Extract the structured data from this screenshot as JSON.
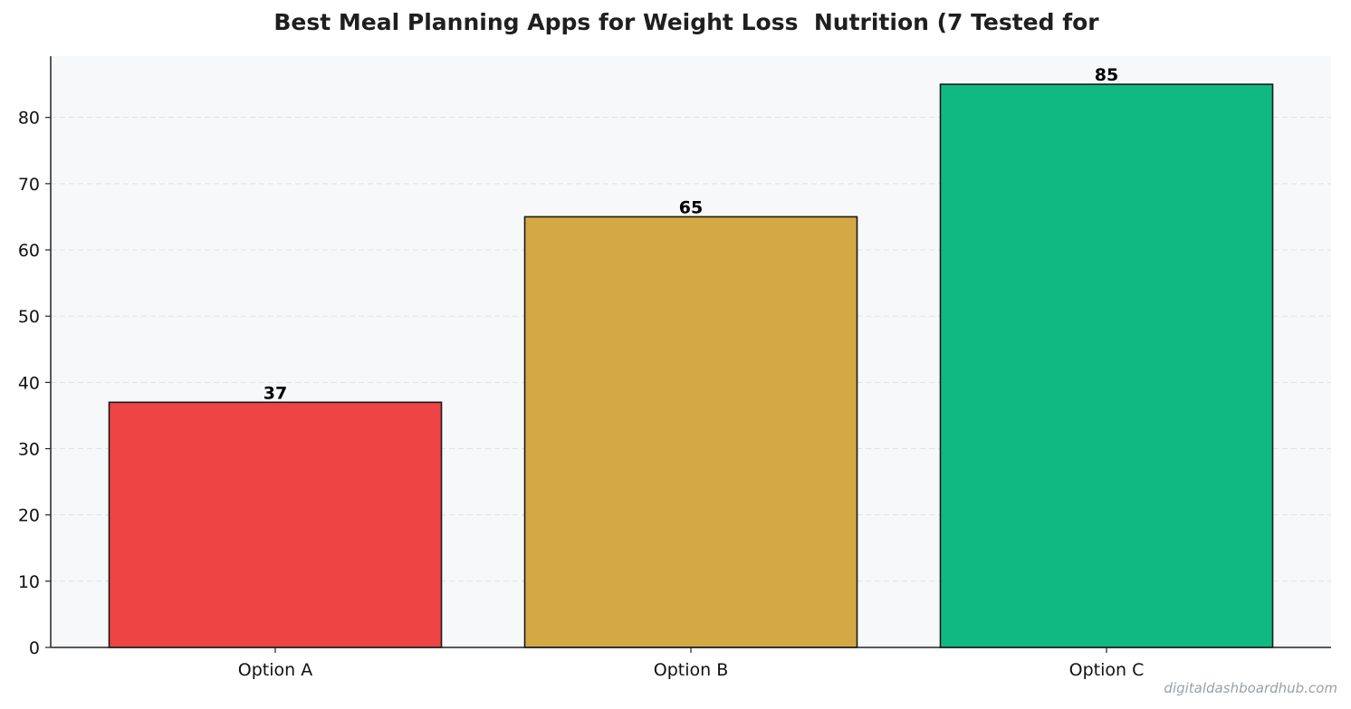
{
  "chart_data": {
    "type": "bar",
    "title": "Best Meal Planning Apps for Weight Loss  Nutrition (7 Tested for",
    "categories": [
      "Option A",
      "Option B",
      "Option C"
    ],
    "values": [
      37,
      65,
      85
    ],
    "colors": [
      "#ef4444",
      "#d4a843",
      "#10b981"
    ],
    "ylim": [
      0,
      89.25
    ],
    "yticks": [
      0,
      10,
      20,
      30,
      40,
      50,
      60,
      70,
      80
    ],
    "grid": true,
    "xlabel": "",
    "ylabel": ""
  },
  "watermark": "digitaldashboardhub.com"
}
